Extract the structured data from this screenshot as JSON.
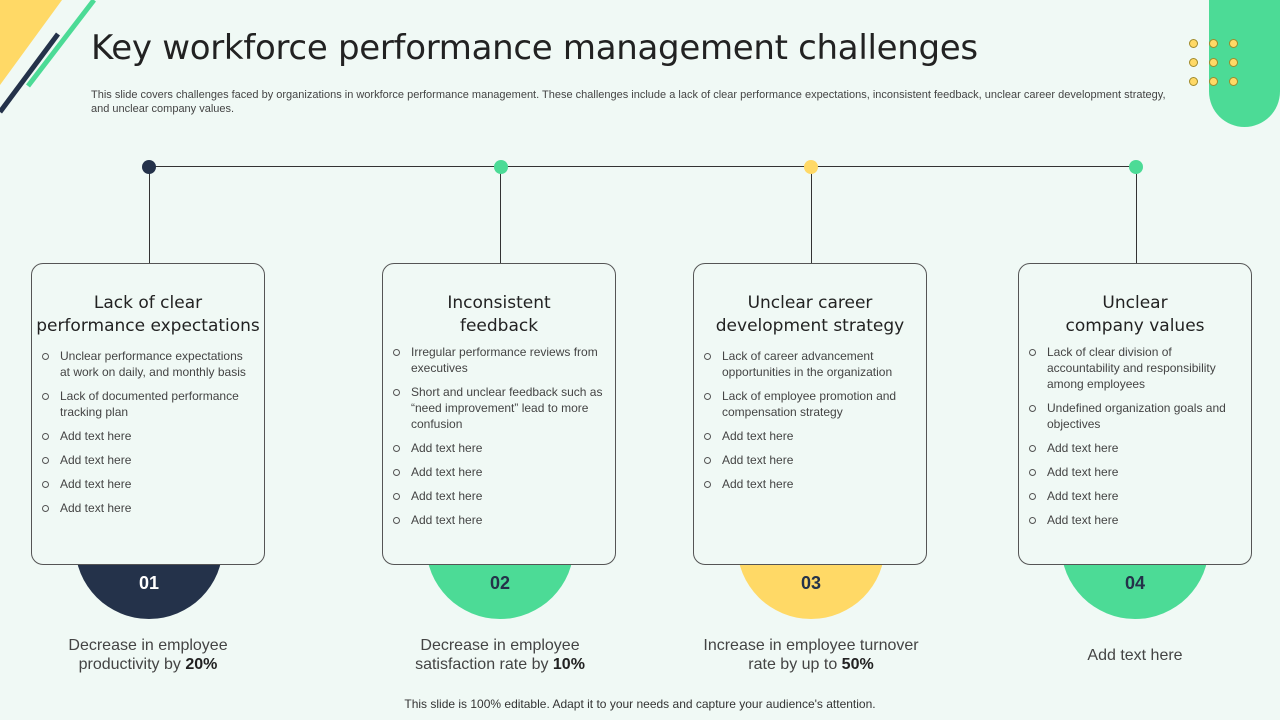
{
  "title": "Key workforce performance management challenges",
  "subtitle": "This slide covers challenges faced by organizations in workforce performance management. These challenges include a lack of clear performance expectations, inconsistent feedback, unclear career development strategy, and unclear company values.",
  "colors": {
    "navy": "#24324a",
    "green": "#4cdb96",
    "yellow": "#ffd966",
    "background": "#f0f9f5"
  },
  "cards": [
    {
      "title_line1": "Lack of clear",
      "title_line2": "performance expectations",
      "number": "01",
      "accent": "#24324a",
      "items": [
        "Unclear performance expectations at work on daily, and monthly basis",
        "Lack of documented performance tracking plan",
        "Add text here",
        "Add text here",
        "Add text here",
        "Add text here"
      ],
      "stat_pre": "Decrease in employee productivity by ",
      "stat_bold": "20%"
    },
    {
      "title_line1": "Inconsistent",
      "title_line2": "feedback",
      "number": "02",
      "accent": "#4cdb96",
      "items": [
        "Irregular performance reviews from executives",
        "Short and unclear feedback such as “need improvement” lead to more confusion",
        "Add text here",
        "Add text here",
        "Add text here",
        "Add text here"
      ],
      "stat_pre": "Decrease in employee satisfaction rate by ",
      "stat_bold": "10%"
    },
    {
      "title_line1": "Unclear career",
      "title_line2": "development strategy",
      "number": "03",
      "accent": "#ffd966",
      "items": [
        "Lack of career advancement opportunities in the organization",
        "Lack of employee promotion and compensation strategy",
        "Add text here",
        "Add text here",
        "Add text here"
      ],
      "stat_pre": "Increase in employee turnover rate by up to ",
      "stat_bold": "50%"
    },
    {
      "title_line1": "Unclear",
      "title_line2": "company values",
      "number": "04",
      "accent": "#4cdb96",
      "items": [
        "Lack of clear division of accountability and responsibility among employees",
        "Undefined organization goals and objectives",
        "Add text here",
        "Add text here",
        "Add text here",
        "Add text here"
      ],
      "stat_pre": "Add text here",
      "stat_bold": ""
    }
  ],
  "footer": "This slide is 100% editable. Adapt it to your needs and capture your audience's attention."
}
